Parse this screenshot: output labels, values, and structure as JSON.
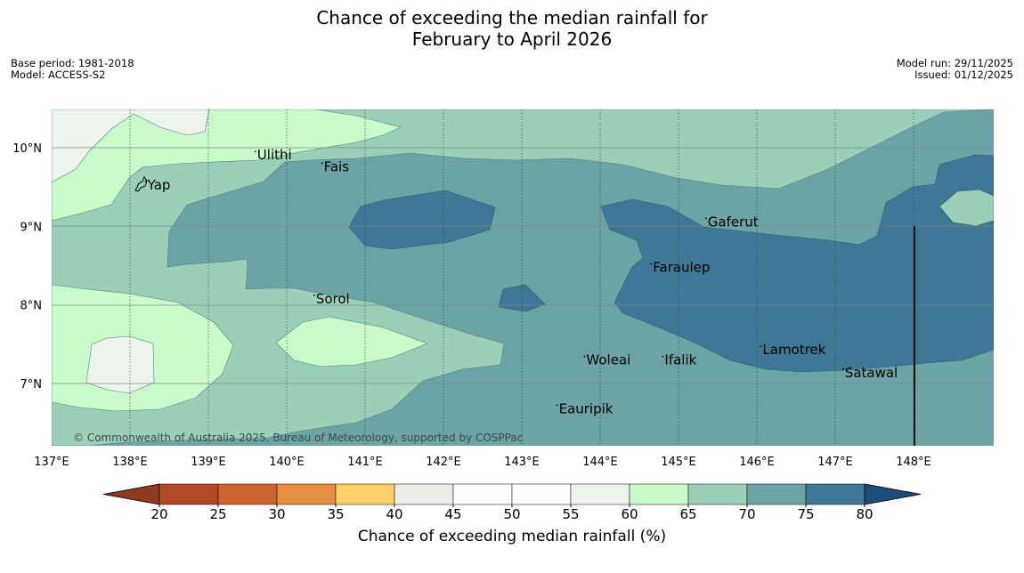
{
  "title": {
    "line1": "Chance of exceeding the median rainfall for",
    "line2": "February to April 2026"
  },
  "meta_left": {
    "base_period": "Base period: 1981-2018",
    "model": "Model: ACCESS-S2"
  },
  "meta_right": {
    "model_run": "Model run: 29/11/2025",
    "issued": "Issued: 01/12/2025"
  },
  "map": {
    "lon_range": [
      137,
      149
    ],
    "lat_range": [
      6.2,
      10.5
    ],
    "lon_ticks": [
      "137°E",
      "138°E",
      "139°E",
      "140°E",
      "141°E",
      "142°E",
      "143°E",
      "144°E",
      "145°E",
      "146°E",
      "147°E",
      "148°E"
    ],
    "lat_ticks": [
      "10°N",
      "9°N",
      "8°N",
      "7°N"
    ],
    "places": [
      {
        "name": "Ulithi",
        "lon": 139.6,
        "lat": 9.85
      },
      {
        "name": "Fais",
        "lon": 140.45,
        "lat": 9.7
      },
      {
        "name": "Yap",
        "lon": 138.2,
        "lat": 9.47
      },
      {
        "name": "Gaferut",
        "lon": 145.35,
        "lat": 9.0
      },
      {
        "name": "Faraulep",
        "lon": 144.65,
        "lat": 8.42
      },
      {
        "name": "Sorol",
        "lon": 140.35,
        "lat": 8.02
      },
      {
        "name": "Woleai",
        "lon": 143.8,
        "lat": 7.24
      },
      {
        "name": "Ifalik",
        "lon": 144.8,
        "lat": 7.24
      },
      {
        "name": "Lamotrek",
        "lon": 146.05,
        "lat": 7.37
      },
      {
        "name": "Satawal",
        "lon": 147.1,
        "lat": 7.08
      },
      {
        "name": "Eauripik",
        "lon": 143.45,
        "lat": 6.62
      }
    ],
    "copyright": "© Commonwealth of Australia 2025, Bureau of Meteorology, supported by COSPPac"
  },
  "colorbar": {
    "label": "Chance of exceeding median rainfall (%)",
    "ticks": [
      "20",
      "25",
      "30",
      "35",
      "40",
      "45",
      "50",
      "55",
      "60",
      "65",
      "70",
      "75",
      "80"
    ],
    "colors": [
      "#b04a27",
      "#ce6230",
      "#e39043",
      "#fdd06a",
      "#ecebe7",
      "#ffffff",
      "#ffffff",
      "#ecf4ec",
      "#cbfbcb",
      "#9ccfb8",
      "#6ca4a6",
      "#3e7896"
    ],
    "low_extend_color": "#8e3a1f",
    "high_extend_color": "#1b4c7a"
  },
  "colors": {
    "c60_65": "#cbfbcb",
    "c55_60": "#ecf4ec",
    "c65_70": "#9ccfb8",
    "c70_75": "#6ca4a6",
    "c75_80": "#3e7896"
  }
}
